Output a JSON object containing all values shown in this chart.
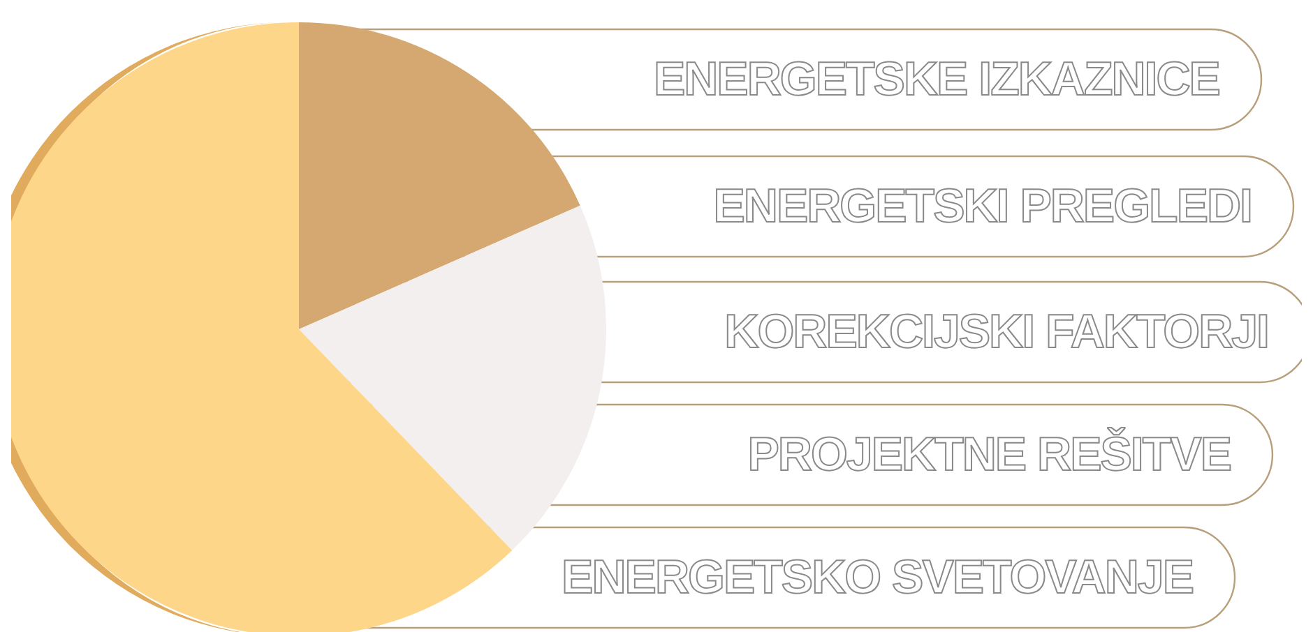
{
  "chart_data": {
    "type": "pie",
    "categories": [
      null,
      null,
      null
    ],
    "values": [
      18.4,
      19.4,
      62.2
    ],
    "colors": [
      "#d4a870",
      "#f3efee",
      "#fdd68a"
    ],
    "annotations": [
      "ENERGETSKE IZKAZNICE",
      "ENERGETSKI PREGLEDI",
      "KOREKCIJSKI FAKTORJI",
      "PROJEKTNE REŠITVE",
      "ENERGETSKO SVETOVANJE"
    ]
  }
}
